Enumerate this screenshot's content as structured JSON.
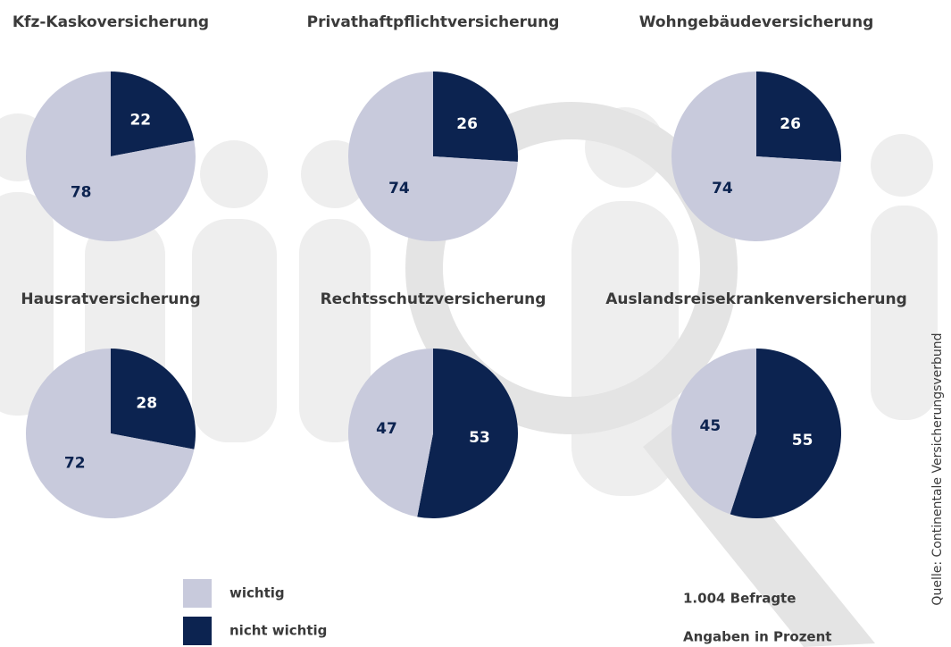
{
  "legend": [
    "wichtig",
    "nicht wichtig"
  ],
  "colors": [
    "#c8cadc",
    "#0c2350"
  ],
  "notes": [
    "1.004 Befragte",
    "Angaben in Prozent"
  ],
  "source": "Quelle: Continentale Versicherungsverbund",
  "chart_data": [
    {
      "type": "pie",
      "title": "Kfz-Kaskoversicherung",
      "values": [
        78,
        22
      ]
    },
    {
      "type": "pie",
      "title": "Privathaftpflichtversicherung",
      "values": [
        74,
        26
      ]
    },
    {
      "type": "pie",
      "title": "Wohngebäudeversicherung",
      "values": [
        74,
        26
      ]
    },
    {
      "type": "pie",
      "title": "Hausratversicherung",
      "values": [
        72,
        28
      ]
    },
    {
      "type": "pie",
      "title": "Rechtsschutzversicherung",
      "values": [
        47,
        53
      ]
    },
    {
      "type": "pie",
      "title": "Auslandsreisekrankenversicherung",
      "values": [
        45,
        55
      ]
    }
  ]
}
